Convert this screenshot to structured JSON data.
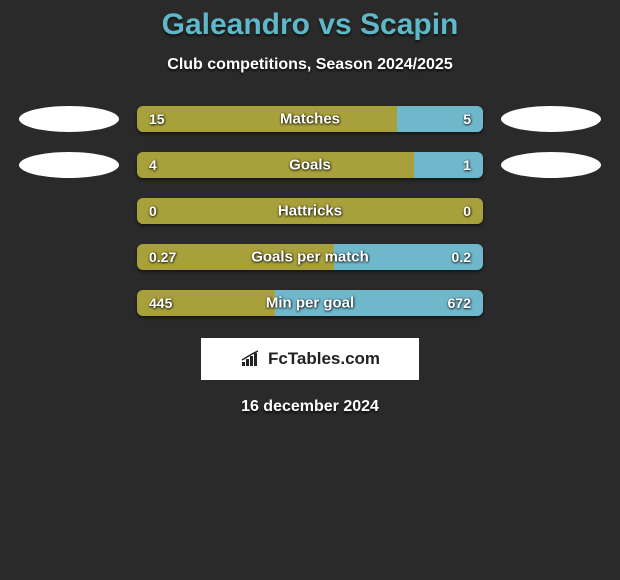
{
  "background_color": "#2a2a2a",
  "title": {
    "text": "Galeandro vs Scapin",
    "color": "#5fb8c9",
    "fontsize": 30
  },
  "subtitle": {
    "text": "Club competitions, Season 2024/2025",
    "color": "#ffffff",
    "fontsize": 16
  },
  "colors": {
    "left_bar": "#a8a03a",
    "right_bar": "#6fb8cc",
    "ellipse": "#ffffff",
    "text": "#ffffff"
  },
  "bars": [
    {
      "label": "Matches",
      "left_value": "15",
      "right_value": "5",
      "left_pct": 75,
      "right_pct": 25,
      "show_ellipses": true
    },
    {
      "label": "Goals",
      "left_value": "4",
      "right_value": "1",
      "left_pct": 80,
      "right_pct": 20,
      "show_ellipses": true
    },
    {
      "label": "Hattricks",
      "left_value": "0",
      "right_value": "0",
      "left_pct": 100,
      "right_pct": 0,
      "show_ellipses": false
    },
    {
      "label": "Goals per match",
      "left_value": "0.27",
      "right_value": "0.2",
      "left_pct": 57,
      "right_pct": 43,
      "show_ellipses": false
    },
    {
      "label": "Min per goal",
      "left_value": "445",
      "right_value": "672",
      "left_pct": 40,
      "right_pct": 60,
      "show_ellipses": false
    }
  ],
  "brand": {
    "text": "FcTables.com",
    "background": "#ffffff",
    "text_color": "#222222"
  },
  "date": {
    "text": "16 december 2024",
    "color": "#ffffff"
  }
}
